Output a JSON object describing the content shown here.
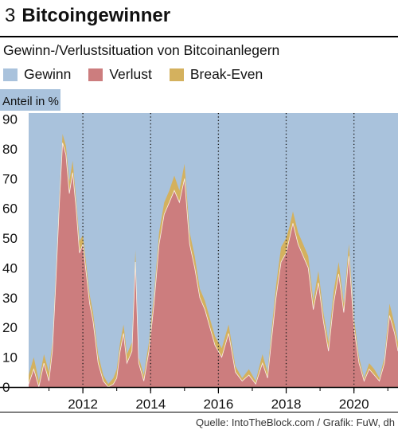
{
  "figure_number": "3",
  "title": "Bitcoingewinner",
  "subtitle": "Gewinn-/Verlustsituation von Bitcoinanlegern",
  "source": "Quelle: IntoTheBlock.com / Grafik: FuW, dh",
  "colors": {
    "gewinn": "#a9c2dc",
    "verlust": "#cc7d7e",
    "break_even": "#d4b15e"
  },
  "chart_data": {
    "type": "area",
    "ylabel": "Anteil in %",
    "ylim": [
      0,
      92
    ],
    "xlim": [
      2010.4,
      2021.3
    ],
    "yticks": [
      0,
      10,
      20,
      30,
      40,
      50,
      60,
      70,
      80,
      90
    ],
    "xticks": [
      2012,
      2014,
      2016,
      2018,
      2020
    ],
    "grid": "dotted vertical at even years",
    "legend": "top",
    "stacked": true,
    "series": [
      {
        "name": "Gewinn",
        "color": "#a9c2dc"
      },
      {
        "name": "Verlust",
        "color": "#cc7d7e"
      },
      {
        "name": "Break-Even",
        "color": "#d4b15e"
      }
    ],
    "x": [
      2010.4,
      2010.55,
      2010.7,
      2010.85,
      2011.0,
      2011.1,
      2011.2,
      2011.3,
      2011.4,
      2011.5,
      2011.6,
      2011.7,
      2011.8,
      2011.9,
      2012.0,
      2012.1,
      2012.2,
      2012.3,
      2012.45,
      2012.6,
      2012.75,
      2012.9,
      2013.0,
      2013.1,
      2013.2,
      2013.3,
      2013.45,
      2013.55,
      2013.65,
      2013.8,
      2013.95,
      2014.1,
      2014.25,
      2014.4,
      2014.55,
      2014.7,
      2014.85,
      2015.0,
      2015.15,
      2015.3,
      2015.45,
      2015.6,
      2015.75,
      2015.9,
      2016.1,
      2016.3,
      2016.5,
      2016.7,
      2016.9,
      2017.1,
      2017.3,
      2017.45,
      2017.55,
      2017.7,
      2017.85,
      2018.0,
      2018.1,
      2018.2,
      2018.35,
      2018.5,
      2018.65,
      2018.8,
      2018.95,
      2019.1,
      2019.25,
      2019.4,
      2019.55,
      2019.7,
      2019.85,
      2020.0,
      2020.15,
      2020.3,
      2020.45,
      2020.6,
      2020.75,
      2020.9,
      2021.05,
      2021.2,
      2021.3
    ],
    "verlust": [
      1,
      6,
      0,
      8,
      2,
      12,
      35,
      60,
      82,
      78,
      65,
      72,
      60,
      45,
      48,
      38,
      28,
      22,
      8,
      2,
      0,
      1,
      3,
      12,
      18,
      8,
      12,
      42,
      8,
      2,
      12,
      28,
      48,
      58,
      62,
      66,
      62,
      70,
      48,
      40,
      30,
      26,
      20,
      14,
      10,
      18,
      5,
      2,
      4,
      1,
      8,
      3,
      14,
      30,
      42,
      45,
      50,
      55,
      48,
      44,
      40,
      26,
      35,
      22,
      12,
      28,
      38,
      25,
      44,
      20,
      8,
      2,
      6,
      4,
      2,
      8,
      24,
      18,
      12
    ],
    "break_even": [
      3,
      4,
      2,
      3,
      3,
      3,
      3,
      3,
      3,
      3,
      4,
      4,
      3,
      4,
      3,
      3,
      3,
      3,
      3,
      2,
      1,
      2,
      3,
      3,
      3,
      3,
      3,
      4,
      2,
      2,
      3,
      3,
      4,
      4,
      4,
      5,
      4,
      5,
      4,
      4,
      3,
      3,
      3,
      3,
      3,
      3,
      2,
      1,
      2,
      1,
      3,
      2,
      3,
      4,
      5,
      5,
      4,
      4,
      4,
      4,
      4,
      3,
      4,
      3,
      3,
      4,
      4,
      3,
      4,
      3,
      2,
      1,
      2,
      2,
      1,
      2,
      4,
      3,
      3
    ]
  }
}
